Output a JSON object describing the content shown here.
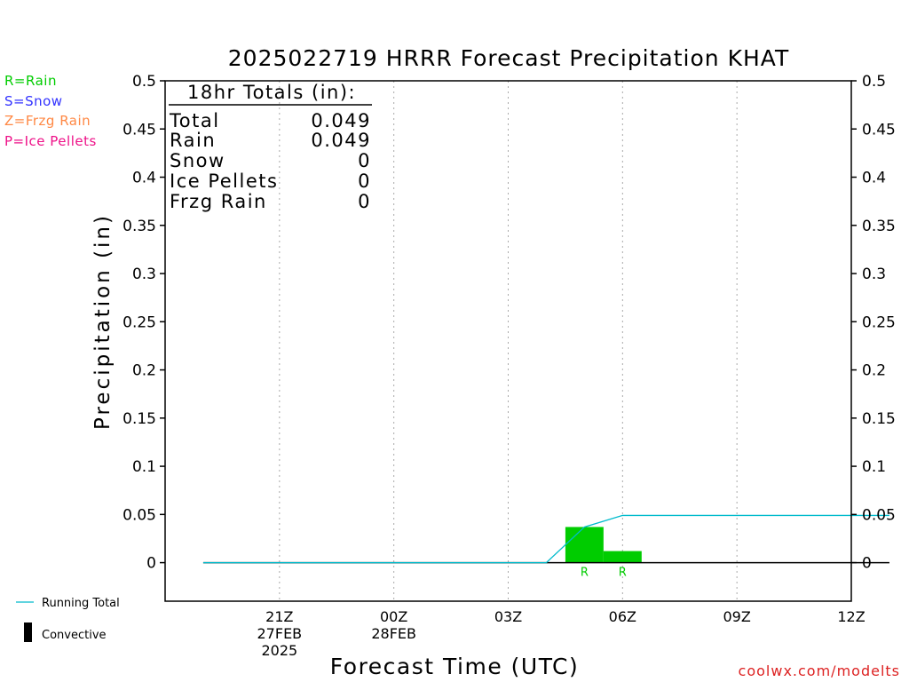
{
  "title": "2025022719 HRRR Forecast Precipitation KHAT",
  "credit": "coolwx.com/modelts",
  "colors": {
    "rain": "#00cc00",
    "snow": "#3333ff",
    "frzg": "#ff8844",
    "ice": "#ee1188",
    "running_total": "#00bbcc",
    "convective": "#000000",
    "grid": "#aaaaaa"
  },
  "type_legend": {
    "rain": "R=Rain",
    "snow": "S=Snow",
    "frzg": "Z=Frzg Rain",
    "ice": "P=Ice Pellets"
  },
  "bottom_legend": {
    "running_total": "Running Total",
    "convective": "Convective"
  },
  "totals": {
    "header": "18hr Totals (in):",
    "rows": [
      {
        "label": "Total",
        "value": "0.049"
      },
      {
        "label": "Rain",
        "value": "0.049"
      },
      {
        "label": "Snow",
        "value": "0"
      },
      {
        "label": "Ice Pellets",
        "value": "0"
      },
      {
        "label": "Frzg Rain",
        "value": "0"
      }
    ]
  },
  "chart_data": {
    "type": "bar",
    "title": "2025022719 HRRR Forecast Precipitation KHAT",
    "xlabel": "Forecast Time (UTC)",
    "ylabel": "Precipitation (in)",
    "ylim": [
      -0.04,
      0.5
    ],
    "xlim_hours": [
      -1,
      17
    ],
    "yticks": [
      "0",
      "0.05",
      "0.1",
      "0.15",
      "0.2",
      "0.25",
      "0.3",
      "0.35",
      "0.4",
      "0.45",
      "0.5"
    ],
    "xticks": [
      {
        "hour": 2,
        "lines": [
          "21Z",
          "27FEB",
          "2025"
        ]
      },
      {
        "hour": 5,
        "lines": [
          "00Z",
          "28FEB"
        ]
      },
      {
        "hour": 8,
        "lines": [
          "03Z"
        ]
      },
      {
        "hour": 11,
        "lines": [
          "06Z"
        ]
      },
      {
        "hour": 14,
        "lines": [
          "09Z"
        ]
      },
      {
        "hour": 17,
        "lines": [
          "12Z"
        ]
      }
    ],
    "grid_vertical": true,
    "hours": [
      0,
      1,
      2,
      3,
      4,
      5,
      6,
      7,
      8,
      9,
      10,
      11,
      12,
      13,
      14,
      15,
      16,
      17,
      18
    ],
    "series": [
      {
        "name": "Running Total",
        "values": [
          0,
          0,
          0,
          0,
          0,
          0,
          0,
          0,
          0,
          0,
          0.037,
          0.049,
          0.049,
          0.049,
          0.049,
          0.049,
          0.049,
          0.049,
          0.049
        ]
      },
      {
        "name": "Convective",
        "values": [
          0,
          0,
          0,
          0,
          0,
          0,
          0,
          0,
          0,
          0,
          0,
          0,
          0,
          0,
          0,
          0,
          0,
          0,
          0
        ]
      }
    ],
    "bars": [
      {
        "hour": 10,
        "value": 0.037,
        "type": "R"
      },
      {
        "hour": 11,
        "value": 0.012,
        "type": "R"
      }
    ]
  }
}
